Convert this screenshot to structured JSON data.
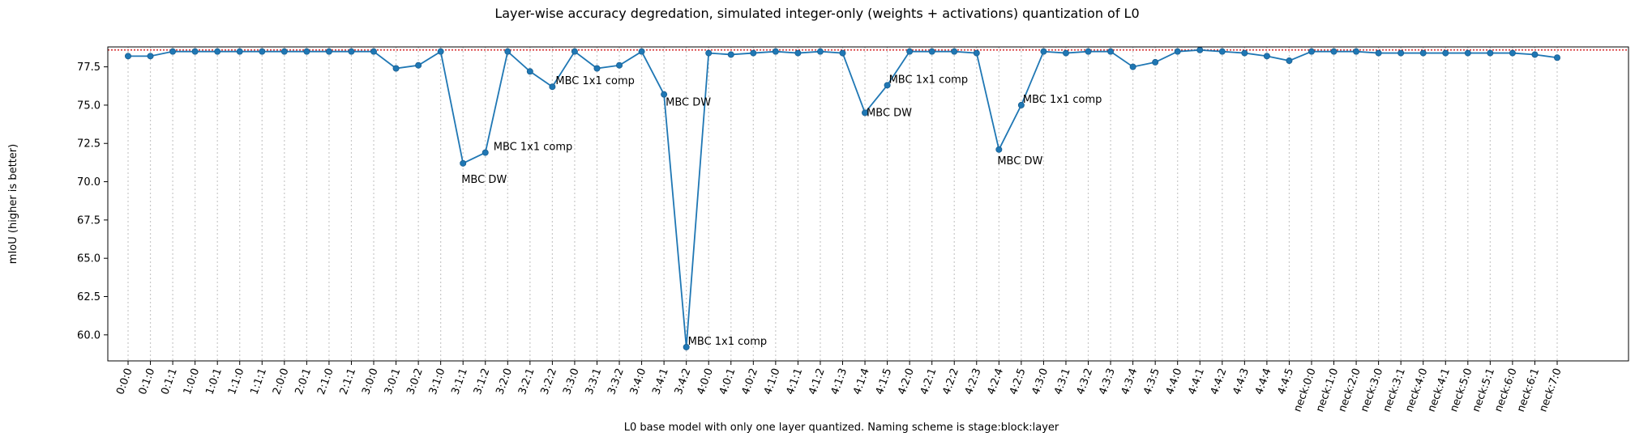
{
  "chart_data": {
    "type": "line",
    "title": "Layer-wise accuracy degredation, simulated integer-only (weights + activations) quantization of L0",
    "xlabel": "L0 base model with only one layer quantized. Naming scheme is stage:block:layer",
    "ylabel": "mIoU (higher is better)",
    "ylim": [
      58.3,
      78.8
    ],
    "yticks": [
      "60.0",
      "62.5",
      "65.0",
      "67.5",
      "70.0",
      "72.5",
      "75.0",
      "77.5"
    ],
    "grid": "vertical dotted at each x tick",
    "baseline": 78.6,
    "baseline_color": "#d62728",
    "line_color": "#1f77b4",
    "categories": [
      "0:0:0",
      "0:1:0",
      "0:1:1",
      "1:0:0",
      "1:0:1",
      "1:1:0",
      "1:1:1",
      "2:0:0",
      "2:0:1",
      "2:1:0",
      "2:1:1",
      "3:0:0",
      "3:0:1",
      "3:0:2",
      "3:1:0",
      "3:1:1",
      "3:1:2",
      "3:2:0",
      "3:2:1",
      "3:2:2",
      "3:3:0",
      "3:3:1",
      "3:3:2",
      "3:4:0",
      "3:4:1",
      "3:4:2",
      "4:0:0",
      "4:0:1",
      "4:0:2",
      "4:1:0",
      "4:1:1",
      "4:1:2",
      "4:1:3",
      "4:1:4",
      "4:1:5",
      "4:2:0",
      "4:2:1",
      "4:2:2",
      "4:2:3",
      "4:2:4",
      "4:2:5",
      "4:3:0",
      "4:3:1",
      "4:3:2",
      "4:3:3",
      "4:3:4",
      "4:3:5",
      "4:4:0",
      "4:4:1",
      "4:4:2",
      "4:4:3",
      "4:4:4",
      "4:4:5",
      "neck:0:0",
      "neck:1:0",
      "neck:2:0",
      "neck:3:0",
      "neck:3:1",
      "neck:4:0",
      "neck:4:1",
      "neck:5:0",
      "neck:5:1",
      "neck:6:0",
      "neck:6:1",
      "neck:7:0"
    ],
    "values": [
      78.2,
      78.2,
      78.5,
      78.5,
      78.5,
      78.5,
      78.5,
      78.5,
      78.5,
      78.5,
      78.5,
      78.5,
      77.4,
      77.6,
      78.5,
      71.2,
      71.9,
      78.5,
      77.2,
      76.2,
      78.5,
      77.4,
      77.6,
      78.5,
      75.7,
      59.2,
      78.4,
      78.3,
      78.4,
      78.5,
      78.4,
      78.5,
      78.4,
      74.5,
      76.3,
      78.5,
      78.5,
      78.5,
      78.4,
      72.1,
      75.0,
      78.5,
      78.4,
      78.5,
      78.5,
      77.5,
      77.8,
      78.5,
      78.6,
      78.5,
      78.4,
      78.2,
      77.9,
      78.5,
      78.5,
      78.5,
      78.4,
      78.4,
      78.4,
      78.4,
      78.4,
      78.4,
      78.4,
      78.3,
      78.1
    ],
    "annotations": [
      {
        "index": 15,
        "text": "MBC DW"
      },
      {
        "index": 16,
        "text": "MBC 1x1 comp"
      },
      {
        "index": 19,
        "text": "MBC 1x1 comp"
      },
      {
        "index": 24,
        "text": "MBC DW"
      },
      {
        "index": 25,
        "text": "MBC 1x1 comp"
      },
      {
        "index": 33,
        "text": "MBC DW"
      },
      {
        "index": 34,
        "text": "MBC 1x1 comp"
      },
      {
        "index": 39,
        "text": "MBC DW"
      },
      {
        "index": 40,
        "text": "MBC 1x1 comp"
      }
    ]
  }
}
